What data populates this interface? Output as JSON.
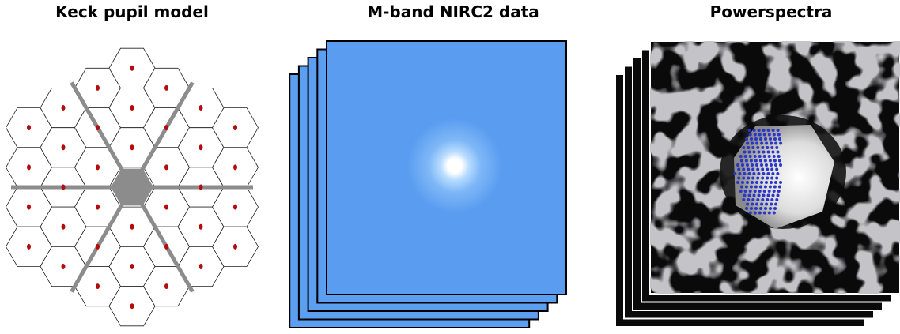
{
  "panels": [
    {
      "title": "Keck pupil model"
    },
    {
      "title": "M-band NIRC2 data"
    },
    {
      "title": "Powerspectra"
    }
  ]
}
